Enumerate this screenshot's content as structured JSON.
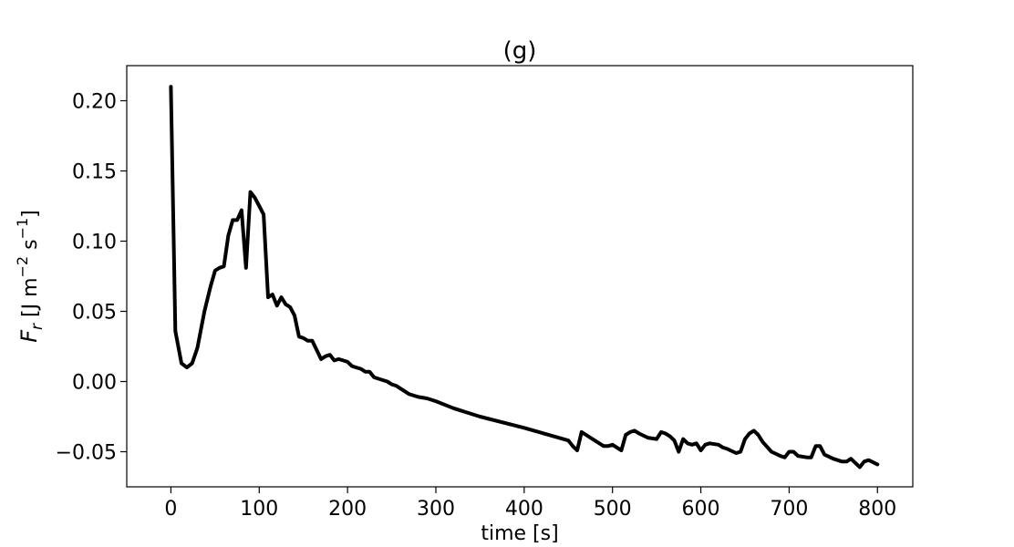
{
  "chart_data": {
    "type": "line",
    "title": "(g)",
    "xlabel": "time [s]",
    "ylabel": {
      "base": "F",
      "sub": "r",
      "units_prefix": " [J m",
      "exp1": "−2",
      "mid": " s",
      "exp2": "−1",
      "suffix": "]"
    },
    "xlim": [
      -50,
      840
    ],
    "ylim": [
      -0.075,
      0.225
    ],
    "xticks": [
      0,
      100,
      200,
      300,
      400,
      500,
      600,
      700,
      800
    ],
    "xtick_labels": [
      "0",
      "100",
      "200",
      "300",
      "400",
      "500",
      "600",
      "700",
      "800"
    ],
    "yticks": [
      0.2,
      0.15,
      0.1,
      0.05,
      0.0,
      -0.05
    ],
    "ytick_labels": [
      "0.20",
      "0.15",
      "0.10",
      "0.05",
      "0.00",
      "−0.05"
    ],
    "grid": false,
    "legend": null,
    "line_color": "#000000",
    "series": [
      {
        "x": [
          0,
          5,
          12,
          18,
          24,
          30,
          38,
          45,
          50,
          55,
          60,
          65,
          70,
          75,
          80,
          85,
          90,
          95,
          100,
          105,
          110,
          115,
          120,
          125,
          130,
          135,
          140,
          145,
          150,
          155,
          160,
          170,
          175,
          180,
          185,
          190,
          195,
          200,
          205,
          210,
          215,
          220,
          225,
          230,
          235,
          240,
          245,
          250,
          255,
          260,
          270,
          280,
          290,
          300,
          320,
          350,
          400,
          450,
          455,
          460,
          465,
          470,
          480,
          490,
          495,
          500,
          505,
          510,
          515,
          520,
          525,
          530,
          540,
          550,
          555,
          560,
          565,
          570,
          575,
          580,
          585,
          590,
          595,
          600,
          605,
          610,
          620,
          625,
          630,
          640,
          645,
          650,
          655,
          660,
          665,
          670,
          680,
          690,
          695,
          700,
          705,
          710,
          720,
          725,
          730,
          735,
          740,
          750,
          760,
          765,
          770,
          775,
          780,
          785,
          790,
          800
        ],
        "y": [
          0.21,
          0.036,
          0.013,
          0.01,
          0.013,
          0.024,
          0.05,
          0.068,
          0.079,
          0.081,
          0.082,
          0.104,
          0.115,
          0.115,
          0.122,
          0.081,
          0.135,
          0.131,
          0.125,
          0.119,
          0.06,
          0.062,
          0.054,
          0.06,
          0.055,
          0.053,
          0.047,
          0.032,
          0.031,
          0.029,
          0.029,
          0.016,
          0.018,
          0.019,
          0.015,
          0.016,
          0.015,
          0.014,
          0.011,
          0.01,
          0.009,
          0.007,
          0.007,
          0.003,
          0.002,
          0.001,
          0.0,
          -0.002,
          -0.003,
          -0.005,
          -0.009,
          -0.011,
          -0.012,
          -0.014,
          -0.019,
          -0.025,
          -0.033,
          -0.042,
          -0.046,
          -0.049,
          -0.036,
          -0.038,
          -0.042,
          -0.046,
          -0.046,
          -0.045,
          -0.047,
          -0.049,
          -0.038,
          -0.036,
          -0.035,
          -0.037,
          -0.04,
          -0.041,
          -0.036,
          -0.037,
          -0.039,
          -0.042,
          -0.05,
          -0.041,
          -0.044,
          -0.045,
          -0.044,
          -0.049,
          -0.045,
          -0.044,
          -0.045,
          -0.047,
          -0.048,
          -0.051,
          -0.05,
          -0.041,
          -0.037,
          -0.035,
          -0.038,
          -0.043,
          -0.05,
          -0.053,
          -0.054,
          -0.05,
          -0.05,
          -0.053,
          -0.054,
          -0.054,
          -0.046,
          -0.046,
          -0.052,
          -0.055,
          -0.057,
          -0.057,
          -0.055,
          -0.058,
          -0.061,
          -0.057,
          -0.056,
          -0.059
        ]
      }
    ]
  }
}
